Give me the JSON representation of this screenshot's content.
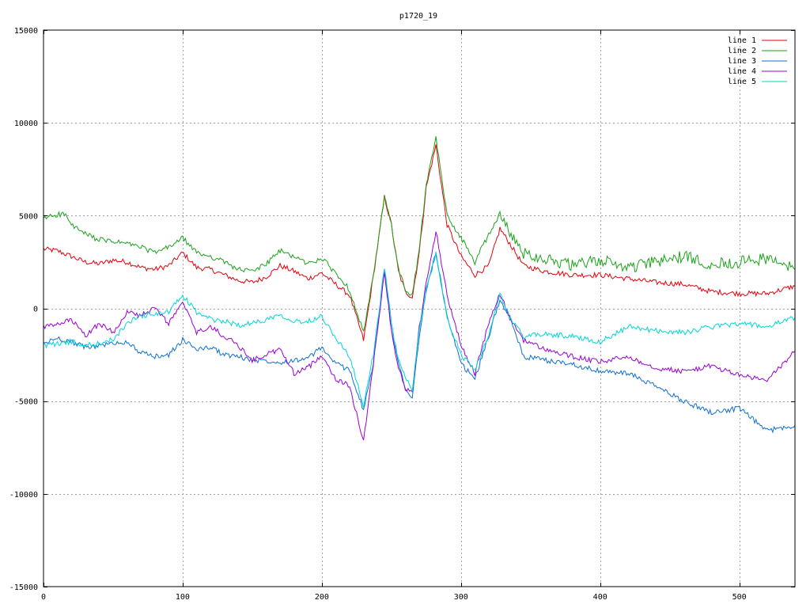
{
  "chart_data": {
    "type": "line",
    "title": "p1720_19",
    "xlabel": "",
    "ylabel": "",
    "xlim": [
      0,
      540
    ],
    "ylim": [
      -15000,
      15000
    ],
    "xticks": [
      0,
      100,
      200,
      300,
      400,
      500
    ],
    "yticks": [
      -15000,
      -10000,
      -5000,
      0,
      5000,
      10000,
      15000
    ],
    "grid": true,
    "legend_position": "top-right",
    "colors": {
      "line 1": "#e8000b",
      "line 2": "#1aa31a",
      "line 3": "#0f6fd6",
      "line 4": "#9b00d8",
      "line 5": "#00d6d6"
    },
    "series": [
      {
        "name": "line 1",
        "x": [
          0,
          10,
          20,
          30,
          40,
          50,
          60,
          70,
          80,
          90,
          100,
          110,
          120,
          130,
          140,
          150,
          160,
          170,
          180,
          190,
          200,
          210,
          220,
          230,
          237,
          245,
          250,
          255,
          260,
          265,
          270,
          275,
          282,
          290,
          300,
          310,
          320,
          328,
          335,
          345,
          360,
          380,
          400,
          420,
          440,
          460,
          480,
          500,
          520,
          540
        ],
        "y": [
          3200,
          3100,
          2800,
          2500,
          2400,
          2600,
          2500,
          2200,
          2100,
          2300,
          3000,
          2200,
          2100,
          1800,
          1500,
          1400,
          1700,
          2300,
          2000,
          1600,
          1900,
          1300,
          700,
          -1700,
          1700,
          6000,
          4500,
          2000,
          900,
          600,
          3000,
          6500,
          8800,
          4500,
          2800,
          1800,
          2300,
          4300,
          3500,
          2300,
          2000,
          1800,
          1800,
          1600,
          1400,
          1300,
          900,
          800,
          800,
          1200
        ]
      },
      {
        "name": "line 2",
        "x": [
          0,
          5,
          15,
          20,
          30,
          40,
          50,
          60,
          70,
          80,
          90,
          100,
          110,
          120,
          130,
          140,
          150,
          160,
          170,
          180,
          190,
          200,
          210,
          220,
          230,
          237,
          245,
          250,
          255,
          260,
          265,
          270,
          275,
          282,
          290,
          300,
          310,
          320,
          328,
          335,
          345,
          360,
          380,
          400,
          420,
          440,
          460,
          480,
          500,
          520,
          540
        ],
        "y": [
          4800,
          5000,
          5100,
          4500,
          4000,
          3700,
          3600,
          3500,
          3300,
          3000,
          3300,
          3800,
          3000,
          2800,
          2500,
          2100,
          2000,
          2400,
          3100,
          2800,
          2400,
          2700,
          1900,
          1000,
          -1300,
          1700,
          6000,
          4500,
          2100,
          1000,
          700,
          3200,
          6600,
          9200,
          5000,
          3800,
          2500,
          4000,
          5100,
          4000,
          3000,
          2700,
          2300,
          2600,
          2200,
          2500,
          2800,
          2400,
          2500,
          2700,
          2100
        ]
      },
      {
        "name": "line 3",
        "x": [
          0,
          10,
          20,
          30,
          40,
          50,
          60,
          70,
          80,
          90,
          100,
          110,
          120,
          130,
          140,
          150,
          160,
          170,
          180,
          190,
          200,
          210,
          220,
          230,
          237,
          245,
          250,
          255,
          260,
          265,
          270,
          275,
          282,
          290,
          300,
          310,
          320,
          328,
          335,
          345,
          360,
          380,
          400,
          420,
          440,
          460,
          480,
          500,
          520,
          540
        ],
        "y": [
          -1900,
          -1600,
          -1800,
          -2100,
          -2000,
          -1900,
          -1800,
          -2400,
          -2600,
          -2500,
          -1700,
          -2200,
          -2100,
          -2500,
          -2600,
          -2800,
          -2800,
          -2900,
          -2800,
          -2700,
          -2100,
          -3000,
          -3300,
          -5500,
          -3000,
          2000,
          -1000,
          -3000,
          -4200,
          -4900,
          -1500,
          1000,
          3000,
          -500,
          -3000,
          -3800,
          -1500,
          500,
          -500,
          -2600,
          -2800,
          -3000,
          -3400,
          -3500,
          -4200,
          -5000,
          -5600,
          -5400,
          -6600,
          -6300
        ]
      },
      {
        "name": "line 4",
        "x": [
          0,
          10,
          20,
          30,
          40,
          50,
          60,
          70,
          80,
          90,
          100,
          110,
          120,
          130,
          140,
          150,
          160,
          170,
          180,
          190,
          200,
          210,
          220,
          230,
          237,
          245,
          250,
          255,
          260,
          265,
          270,
          275,
          282,
          290,
          300,
          310,
          320,
          328,
          335,
          345,
          360,
          380,
          400,
          420,
          440,
          460,
          480,
          500,
          520,
          540
        ],
        "y": [
          -1000,
          -900,
          -600,
          -1500,
          -800,
          -1300,
          -200,
          -400,
          0,
          -800,
          300,
          -1300,
          -1000,
          -1500,
          -2000,
          -2800,
          -2500,
          -2200,
          -3500,
          -3200,
          -2500,
          -3800,
          -4200,
          -7200,
          -3000,
          2000,
          -1200,
          -3200,
          -4300,
          -4600,
          -1000,
          1300,
          4200,
          700,
          -2000,
          -3500,
          -800,
          800,
          -500,
          -1700,
          -2200,
          -2600,
          -2900,
          -2600,
          -3200,
          -3400,
          -3100,
          -3600,
          -3900,
          -2300
        ]
      },
      {
        "name": "line 5",
        "x": [
          0,
          10,
          20,
          30,
          40,
          50,
          60,
          70,
          80,
          90,
          100,
          110,
          120,
          130,
          140,
          150,
          160,
          170,
          180,
          190,
          200,
          210,
          220,
          230,
          237,
          245,
          250,
          255,
          260,
          265,
          270,
          275,
          282,
          290,
          300,
          310,
          320,
          328,
          335,
          345,
          360,
          380,
          400,
          420,
          440,
          460,
          480,
          500,
          520,
          540
        ],
        "y": [
          -2000,
          -1900,
          -1800,
          -2000,
          -1900,
          -1700,
          -800,
          -400,
          -300,
          -200,
          700,
          -200,
          -600,
          -700,
          -900,
          -800,
          -600,
          -300,
          -700,
          -700,
          -400,
          -1600,
          -2600,
          -5300,
          -2500,
          2200,
          -800,
          -2800,
          -3700,
          -4500,
          -1200,
          1000,
          3000,
          -500,
          -2500,
          -3300,
          -1500,
          800,
          -500,
          -1500,
          -1400,
          -1500,
          -1800,
          -1000,
          -1200,
          -1300,
          -1000,
          -800,
          -1000,
          -500
        ]
      }
    ]
  }
}
